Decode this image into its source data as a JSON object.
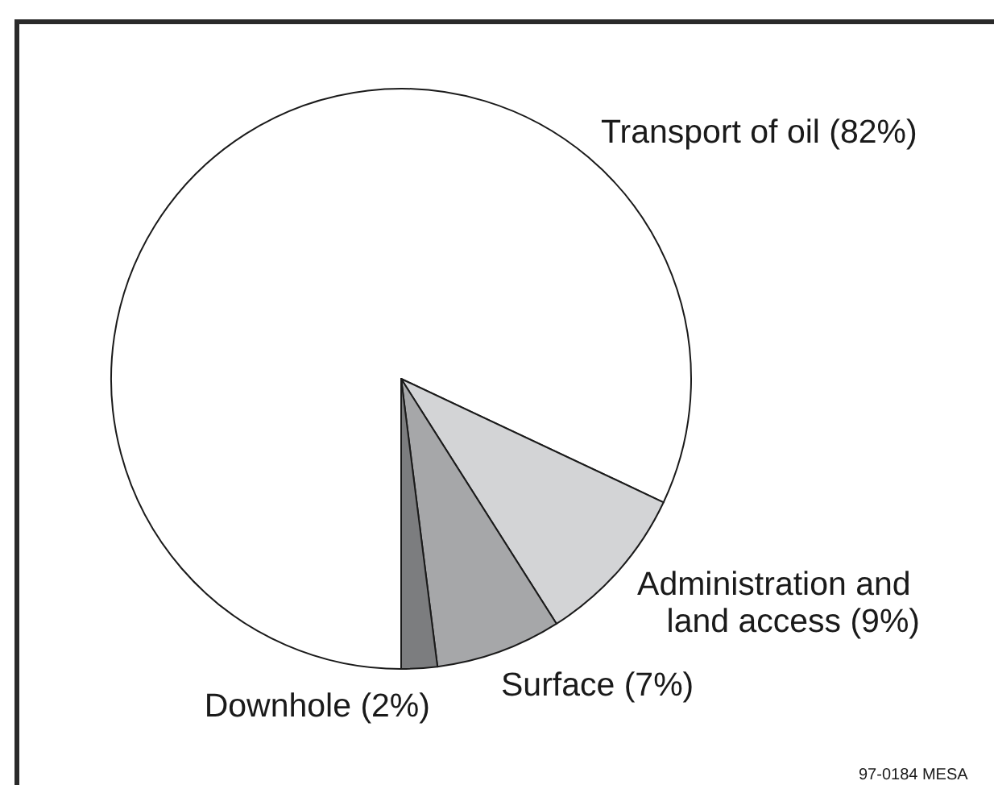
{
  "chart_data": {
    "type": "pie",
    "categories": [
      "Transport of oil",
      "Administration and land access",
      "Surface",
      "Downhole"
    ],
    "values": [
      82,
      9,
      7,
      2
    ],
    "colors": [
      "#ffffff",
      "#d3d4d6",
      "#a6a7a9",
      "#7c7d7f"
    ],
    "value_labels": [
      "(82%)",
      "(9%)",
      "(7%)",
      "(2%)"
    ],
    "annotations": [
      "97-0184 MESA"
    ]
  }
}
